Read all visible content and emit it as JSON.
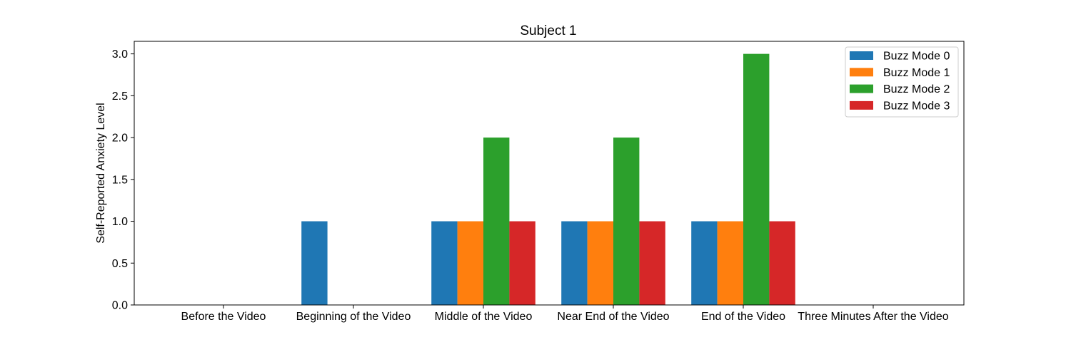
{
  "chart_data": {
    "type": "bar",
    "title": "Subject 1",
    "xlabel": "",
    "ylabel": "Self-Reported Anxiety Level",
    "categories": [
      "Before the Video",
      "Beginning of the Video",
      "Middle of the Video",
      "Near End of the Video",
      "End of the Video",
      "Three Minutes After the Video"
    ],
    "series": [
      {
        "name": "Buzz Mode 0",
        "color": "#1f77b4",
        "values": [
          0,
          1,
          1,
          1,
          1,
          0
        ]
      },
      {
        "name": "Buzz Mode 1",
        "color": "#ff7f0e",
        "values": [
          0,
          0,
          1,
          1,
          1,
          0
        ]
      },
      {
        "name": "Buzz Mode 2",
        "color": "#2ca02c",
        "values": [
          0,
          0,
          2,
          2,
          3,
          0
        ]
      },
      {
        "name": "Buzz Mode 3",
        "color": "#d62728",
        "values": [
          0,
          0,
          1,
          1,
          1,
          0
        ]
      }
    ],
    "ylim": [
      0,
      3.15
    ],
    "yticks": [
      "0.0",
      "0.5",
      "1.0",
      "1.5",
      "2.0",
      "2.5",
      "3.0"
    ],
    "grid": false,
    "legend_position": "top-right"
  }
}
